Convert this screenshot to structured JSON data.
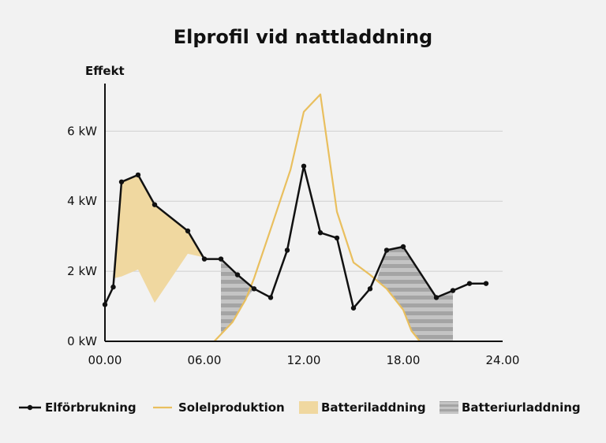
{
  "chart_data": {
    "type": "line",
    "title": "Elprofil vid nattladdning",
    "ylabel": "Effekt",
    "xlabel": "",
    "xlim": [
      0,
      24
    ],
    "ylim": [
      0,
      7.2
    ],
    "x_ticks": [
      {
        "value": 0,
        "label": "00.00"
      },
      {
        "value": 6,
        "label": "06.00"
      },
      {
        "value": 12,
        "label": "12.00"
      },
      {
        "value": 18,
        "label": "18.00"
      },
      {
        "value": 24,
        "label": "24.00"
      }
    ],
    "y_ticks": [
      {
        "value": 0,
        "label": "0 kW"
      },
      {
        "value": 2,
        "label": "2 kW"
      },
      {
        "value": 4,
        "label": "4 kW"
      },
      {
        "value": 6,
        "label": "6 kW"
      }
    ],
    "series": [
      {
        "name": "Elförbrukning",
        "color": "#111111",
        "markers": true,
        "points": [
          [
            0,
            1.05
          ],
          [
            0.5,
            1.55
          ],
          [
            1,
            4.55
          ],
          [
            2,
            4.75
          ],
          [
            3,
            3.9
          ],
          [
            5,
            3.15
          ],
          [
            6,
            2.35
          ],
          [
            7,
            2.35
          ],
          [
            8,
            1.9
          ],
          [
            9,
            1.5
          ],
          [
            10,
            1.25
          ],
          [
            11,
            2.6
          ],
          [
            12,
            5.0
          ],
          [
            13,
            3.1
          ],
          [
            14,
            2.95
          ],
          [
            15,
            0.95
          ],
          [
            16,
            1.5
          ],
          [
            17,
            2.6
          ],
          [
            18,
            2.7
          ],
          [
            20,
            1.25
          ],
          [
            21,
            1.45
          ],
          [
            22,
            1.65
          ],
          [
            23,
            1.65
          ]
        ]
      },
      {
        "name": "Solelproduktion",
        "color": "#e9bf5e",
        "markers": false,
        "points": [
          [
            6.6,
            0.0
          ],
          [
            7.7,
            0.55
          ],
          [
            8.5,
            1.2
          ],
          [
            9.0,
            1.8
          ],
          [
            10.0,
            3.2
          ],
          [
            11.2,
            4.9
          ],
          [
            12.0,
            6.55
          ],
          [
            13.0,
            7.05
          ],
          [
            14.0,
            3.7
          ],
          [
            15.0,
            2.25
          ],
          [
            16.0,
            1.9
          ],
          [
            17.0,
            1.5
          ],
          [
            18.0,
            0.9
          ],
          [
            18.5,
            0.3
          ],
          [
            19.0,
            0.0
          ]
        ]
      }
    ],
    "areas": [
      {
        "name": "Batteriladdning",
        "color": "#f0d8a0",
        "pattern": "solid",
        "polygon": [
          [
            0.5,
            1.55
          ],
          [
            1,
            4.55
          ],
          [
            2,
            4.75
          ],
          [
            3,
            3.9
          ],
          [
            5,
            3.15
          ],
          [
            6,
            2.35
          ],
          [
            6.4,
            2.35
          ],
          [
            5.0,
            2.5
          ],
          [
            3.0,
            1.1
          ],
          [
            2.0,
            2.05
          ],
          [
            1,
            1.85
          ],
          [
            0.55,
            1.8
          ]
        ]
      },
      {
        "name": "Batteriurladdning",
        "color": "#b8b8b8",
        "pattern": "stripes",
        "polygons": [
          [
            [
              7,
              2.35
            ],
            [
              8,
              1.9
            ],
            [
              9,
              1.5
            ],
            [
              8.5,
              1.2
            ],
            [
              7.7,
              0.55
            ],
            [
              7,
              0.2
            ]
          ],
          [
            [
              16.4,
              1.75
            ],
            [
              17,
              2.6
            ],
            [
              18,
              2.7
            ],
            [
              20,
              1.25
            ],
            [
              21,
              1.45
            ],
            [
              21,
              0.0
            ],
            [
              19,
              0.0
            ],
            [
              18.5,
              0.3
            ],
            [
              18,
              0.9
            ],
            [
              17,
              1.5
            ]
          ]
        ]
      }
    ],
    "legend": {
      "placement": "bottom",
      "entries": [
        {
          "label": "Elförbrukning",
          "kind": "line-marker",
          "color": "#111111"
        },
        {
          "label": "Solelproduktion",
          "kind": "line",
          "color": "#e9bf5e"
        },
        {
          "label": "Batteriladdning",
          "kind": "patch",
          "color": "#f0d8a0"
        },
        {
          "label": "Batteriurladdning",
          "kind": "striped-patch",
          "color": "#b8b8b8"
        }
      ]
    }
  }
}
